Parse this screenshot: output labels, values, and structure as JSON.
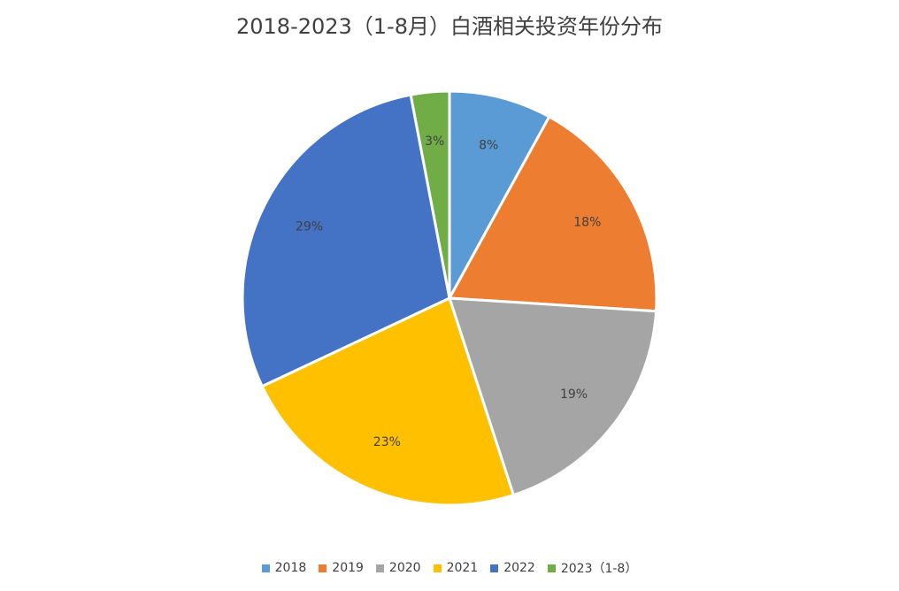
{
  "chart_data": {
    "type": "pie",
    "title": "2018-2023（1-8月）白酒相关投资年份分布",
    "categories": [
      "2018",
      "2019",
      "2020",
      "2021",
      "2022",
      "2023（1-8）"
    ],
    "values": [
      8,
      18,
      19,
      23,
      29,
      3
    ],
    "data_labels": [
      "8%",
      "18%",
      "19%",
      "23%",
      "29%",
      "3%"
    ],
    "colors": [
      "#5B9BD5",
      "#ED7D31",
      "#A5A5A5",
      "#FFC000",
      "#4472C4",
      "#70AD47"
    ],
    "legend": "bottom",
    "start_angle": "12-o'clock",
    "direction": "clockwise"
  }
}
